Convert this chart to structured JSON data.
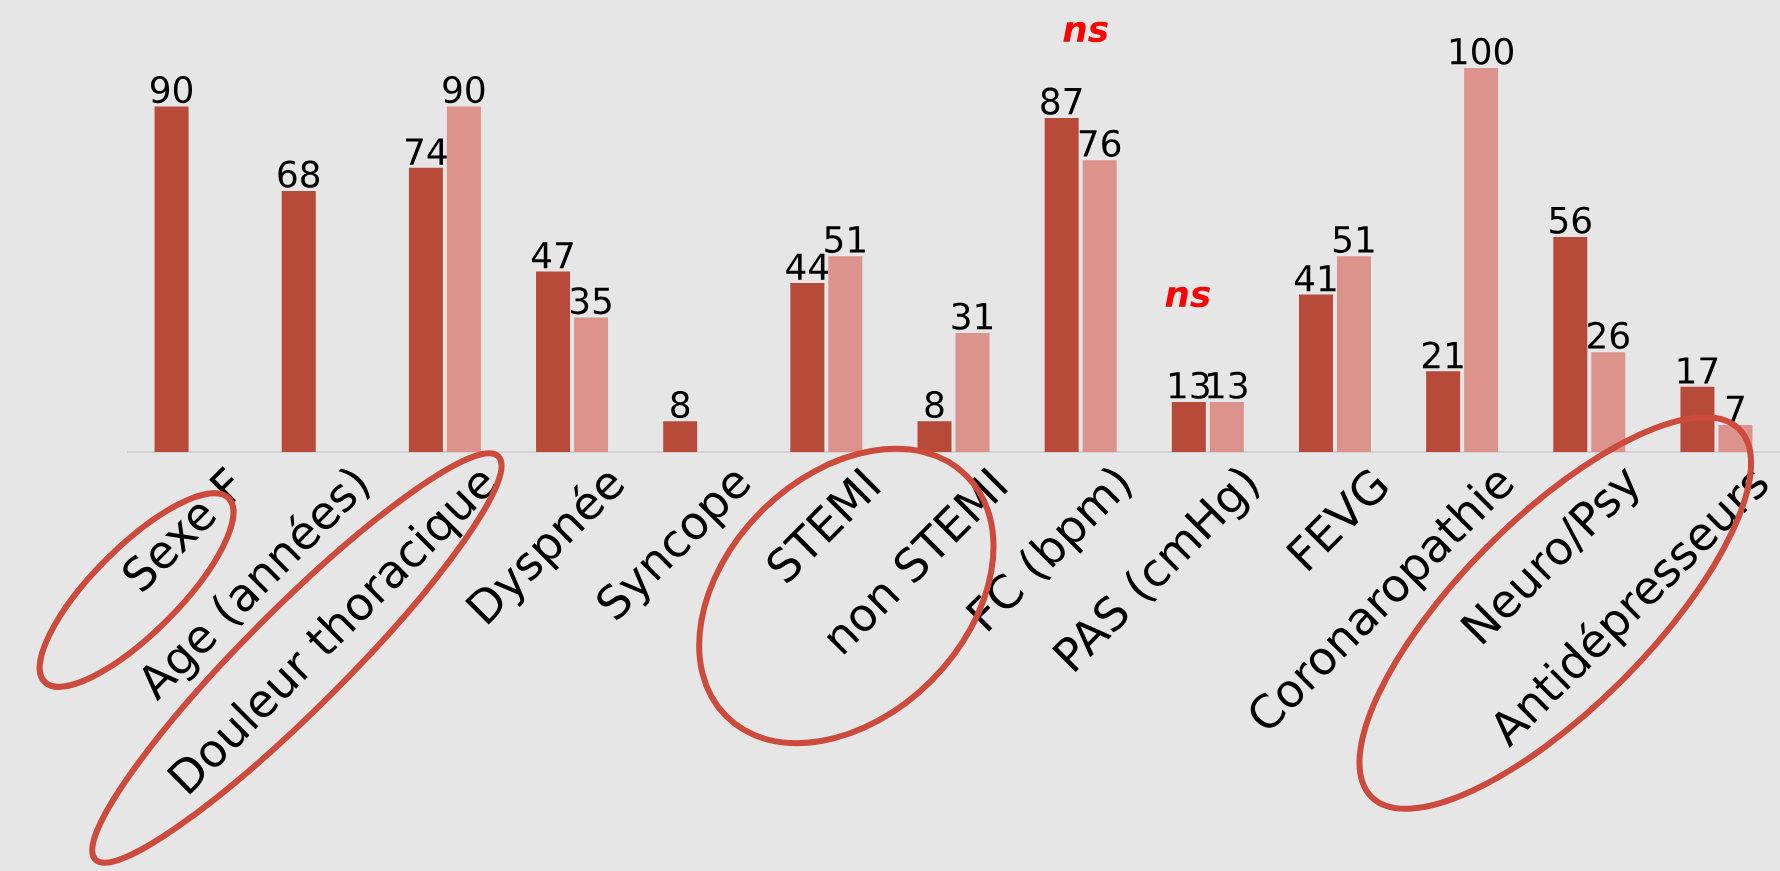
{
  "chart_data": {
    "type": "bar",
    "categories": [
      "Sexe F",
      "Age (années)",
      "Douleur thoracique",
      "Dyspnée",
      "Syncope",
      "STEMI",
      "non STEMI",
      "FC (bpm)",
      "PAS (cmHg)",
      "FEVG",
      "Coronaropathie",
      "Neuro/Psy",
      "Antidépresseurs"
    ],
    "series": [
      {
        "color": "#b84a3a",
        "values": [
          90,
          68,
          74,
          47,
          8,
          44,
          8,
          87,
          13,
          41,
          21,
          56,
          17
        ]
      },
      {
        "color": "#dc938b",
        "values": [
          null,
          null,
          90,
          35,
          null,
          51,
          31,
          76,
          13,
          51,
          100,
          26,
          7
        ]
      }
    ],
    "data_labels": true,
    "annotations": [
      "ns",
      "ns"
    ]
  }
}
